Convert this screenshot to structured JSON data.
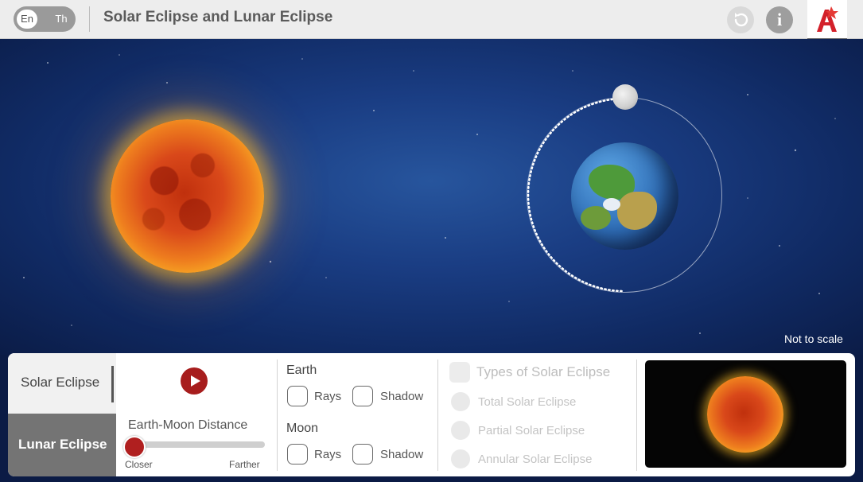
{
  "header": {
    "lang_en": "En",
    "lang_th": "Th",
    "title": "Solar Eclipse and Lunar Eclipse",
    "info_glyph": "i",
    "collapse_glyph": "↓",
    "icons": [
      "reset-icon",
      "info-icon",
      "logo-icon",
      "arrow-down-icon"
    ]
  },
  "scene": {
    "note": "Not to scale",
    "bodies": [
      "sun",
      "earth",
      "moon"
    ]
  },
  "tabs": {
    "solar": "Solar Eclipse",
    "lunar": "Lunar Eclipse",
    "active": "lunar"
  },
  "controls": {
    "play_icon": "play-icon",
    "distance_label": "Earth-Moon Distance",
    "closer_label": "Closer",
    "farther_label": "Farther",
    "distance_value": 0
  },
  "earth": {
    "title": "Earth",
    "rays_label": "Rays",
    "shadow_label": "Shadow",
    "rays_checked": false,
    "shadow_checked": false
  },
  "moon": {
    "title": "Moon",
    "rays_label": "Rays",
    "shadow_label": "Shadow",
    "rays_checked": false,
    "shadow_checked": false
  },
  "solar_types": {
    "title": "Types of Solar Eclipse",
    "enabled": false,
    "options": [
      "Total Solar Eclipse",
      "Partial Solar Eclipse",
      "Annular Solar Eclipse"
    ]
  },
  "colors": {
    "accent_red": "#a71d1d",
    "sky_blue": "#1a3d83",
    "tab_active": "#747474"
  }
}
